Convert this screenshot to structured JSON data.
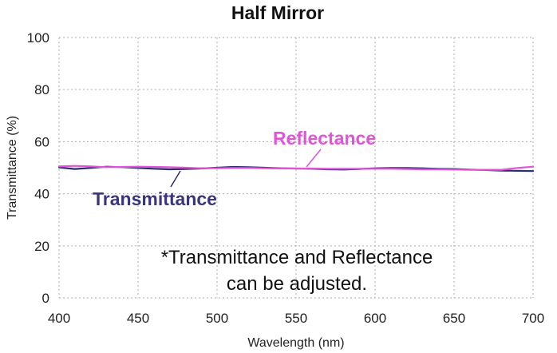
{
  "chart_data": {
    "type": "line",
    "title": "Half Mirror",
    "xlabel": "Wavelength (nm)",
    "ylabel": "Transmittance (%)",
    "xlim": [
      400,
      700
    ],
    "ylim": [
      0,
      100
    ],
    "x_ticks": [
      "400",
      "450",
      "500",
      "550",
      "600",
      "650",
      "700"
    ],
    "y_ticks": [
      "0",
      "20",
      "40",
      "60",
      "80",
      "100"
    ],
    "grid": true,
    "series": [
      {
        "name": "Transmittance",
        "color": "#2a2d6e",
        "x": [
          400,
          410,
          420,
          430,
          440,
          450,
          460,
          470,
          480,
          490,
          500,
          510,
          520,
          530,
          540,
          550,
          560,
          570,
          580,
          590,
          600,
          610,
          620,
          630,
          640,
          650,
          660,
          670,
          680,
          690,
          700
        ],
        "y": [
          50.1,
          49.5,
          49.9,
          50.4,
          50.2,
          49.9,
          49.6,
          49.4,
          49.5,
          49.7,
          50.0,
          50.3,
          50.2,
          50.0,
          49.8,
          49.7,
          49.6,
          49.4,
          49.3,
          49.5,
          49.8,
          49.9,
          49.9,
          49.8,
          49.6,
          49.5,
          49.3,
          49.1,
          48.9,
          48.8,
          48.7
        ]
      },
      {
        "name": "Reflectance",
        "color": "#e055d8",
        "x": [
          400,
          410,
          420,
          430,
          440,
          450,
          460,
          470,
          480,
          490,
          500,
          510,
          520,
          530,
          540,
          550,
          560,
          570,
          580,
          590,
          600,
          610,
          620,
          630,
          640,
          650,
          660,
          670,
          680,
          690,
          700
        ],
        "y": [
          50.5,
          50.7,
          50.5,
          50.2,
          50.3,
          50.4,
          50.3,
          50.2,
          50.0,
          49.8,
          49.8,
          49.9,
          49.9,
          49.8,
          49.7,
          49.7,
          49.7,
          49.6,
          49.6,
          49.6,
          49.6,
          49.6,
          49.5,
          49.4,
          49.4,
          49.3,
          49.2,
          49.2,
          49.2,
          49.9,
          50.4
        ]
      }
    ],
    "annotations": {
      "reflectance_label": "Reflectance",
      "transmittance_label": "Transmittance",
      "note_line1": "*Transmittance and Reflectance",
      "note_line2": "can be adjusted."
    }
  }
}
